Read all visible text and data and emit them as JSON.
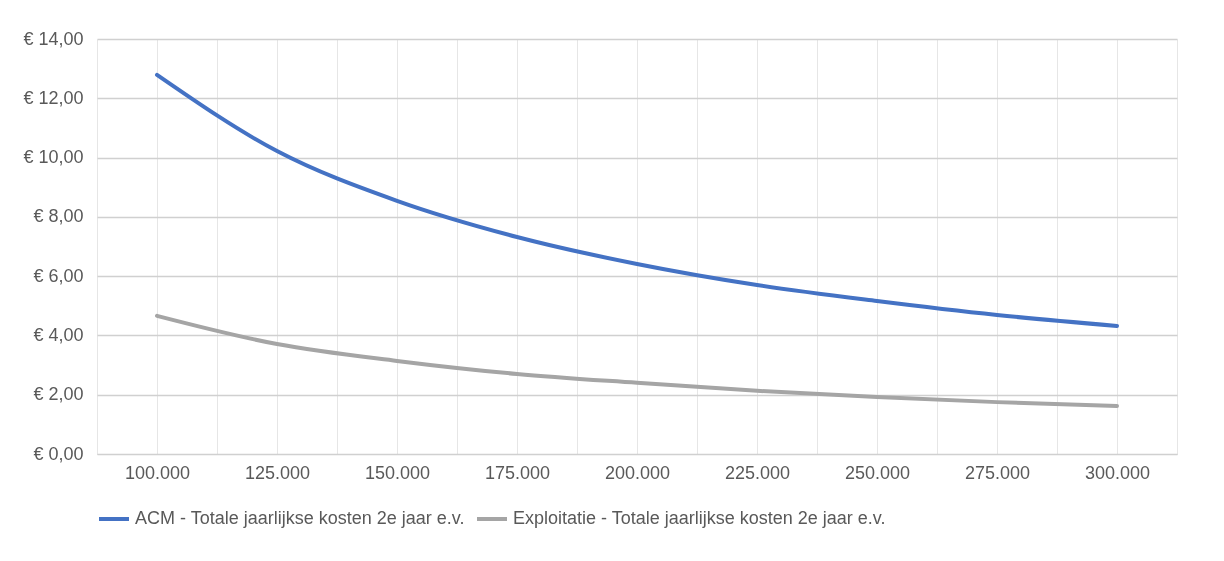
{
  "chart_data": {
    "type": "line",
    "x": [
      100000,
      125000,
      150000,
      175000,
      200000,
      225000,
      250000,
      275000,
      300000
    ],
    "series": [
      {
        "name": "ACM - Totale jaarlijkse kosten 2e jaar e.v.",
        "color": "#4472c4",
        "values": [
          12.79,
          10.22,
          8.54,
          7.32,
          6.41,
          5.7,
          5.16,
          4.69,
          4.32
        ]
      },
      {
        "name": "Exploitatie - Totale jaarlijkse kosten 2e jaar e.v.",
        "color": "#a5a5a5",
        "values": [
          4.66,
          3.71,
          3.14,
          2.7,
          2.4,
          2.13,
          1.92,
          1.75,
          1.62
        ]
      }
    ],
    "xlim": [
      87500,
      312500
    ],
    "xticks": [
      {
        "value": 87500,
        "label": null
      },
      {
        "value": 100000,
        "label": "100.000"
      },
      {
        "value": 112500,
        "label": null
      },
      {
        "value": 125000,
        "label": "125.000"
      },
      {
        "value": 137500,
        "label": null
      },
      {
        "value": 150000,
        "label": "150.000"
      },
      {
        "value": 162500,
        "label": null
      },
      {
        "value": 175000,
        "label": "175.000"
      },
      {
        "value": 187500,
        "label": null
      },
      {
        "value": 200000,
        "label": "200.000"
      },
      {
        "value": 212500,
        "label": null
      },
      {
        "value": 225000,
        "label": "225.000"
      },
      {
        "value": 237500,
        "label": null
      },
      {
        "value": 250000,
        "label": "250.000"
      },
      {
        "value": 262500,
        "label": null
      },
      {
        "value": 275000,
        "label": "275.000"
      },
      {
        "value": 287500,
        "label": null
      },
      {
        "value": 300000,
        "label": "300.000"
      },
      {
        "value": 312500,
        "label": null
      }
    ],
    "ylim": [
      0,
      14
    ],
    "yticks": [
      {
        "value": 0,
        "label": "€ 0,00"
      },
      {
        "value": 2,
        "label": "€ 2,00"
      },
      {
        "value": 4,
        "label": "€ 4,00"
      },
      {
        "value": 6,
        "label": "€ 6,00"
      },
      {
        "value": 8,
        "label": "€ 8,00"
      },
      {
        "value": 10,
        "label": "€ 10,00"
      },
      {
        "value": 12,
        "label": "€ 12,00"
      },
      {
        "value": 14,
        "label": "€ 14,00"
      }
    ],
    "grid": true,
    "legend": "bottom",
    "marker": "none",
    "line_style": "solid"
  }
}
